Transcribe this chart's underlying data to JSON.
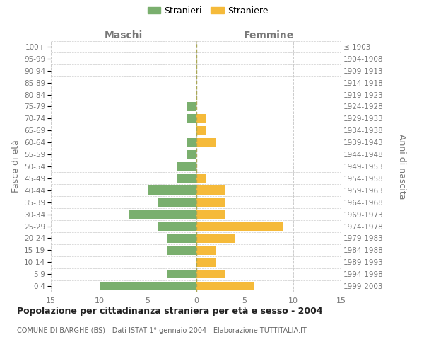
{
  "age_groups": [
    "100+",
    "95-99",
    "90-94",
    "85-89",
    "80-84",
    "75-79",
    "70-74",
    "65-69",
    "60-64",
    "55-59",
    "50-54",
    "45-49",
    "40-44",
    "35-39",
    "30-34",
    "25-29",
    "20-24",
    "15-19",
    "10-14",
    "5-9",
    "0-4"
  ],
  "birth_years": [
    "≤ 1903",
    "1904-1908",
    "1909-1913",
    "1914-1918",
    "1919-1923",
    "1924-1928",
    "1929-1933",
    "1934-1938",
    "1939-1943",
    "1944-1948",
    "1949-1953",
    "1954-1958",
    "1959-1963",
    "1964-1968",
    "1969-1973",
    "1974-1978",
    "1979-1983",
    "1984-1988",
    "1989-1993",
    "1994-1998",
    "1999-2003"
  ],
  "males": [
    0,
    0,
    0,
    0,
    0,
    1,
    1,
    0,
    1,
    1,
    2,
    2,
    5,
    4,
    7,
    4,
    3,
    3,
    0,
    3,
    10
  ],
  "females": [
    0,
    0,
    0,
    0,
    0,
    0,
    1,
    1,
    2,
    0,
    0,
    1,
    3,
    3,
    3,
    9,
    4,
    2,
    2,
    3,
    6
  ],
  "male_color": "#7aaf6e",
  "female_color": "#f5ba3a",
  "title": "Popolazione per cittadinanza straniera per età e sesso - 2004",
  "subtitle": "COMUNE DI BARGHE (BS) - Dati ISTAT 1° gennaio 2004 - Elaborazione TUTTITALIA.IT",
  "ylabel_left": "Fasce di età",
  "ylabel_right": "Anni di nascita",
  "xlabel_left": "Maschi",
  "xlabel_right": "Femmine",
  "legend_male": "Stranieri",
  "legend_female": "Straniere",
  "xlim": 15,
  "background_color": "#ffffff",
  "grid_color": "#cccccc"
}
